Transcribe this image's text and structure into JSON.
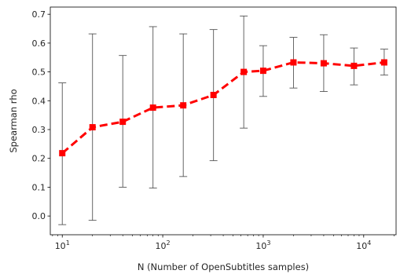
{
  "chart_data": {
    "type": "line",
    "title": "",
    "xlabel": "N (Number of OpenSubtitles samples)",
    "ylabel": "Spearman rho",
    "x_scale": "log",
    "xlim": [
      7.6,
      21000
    ],
    "ylim": [
      -0.065,
      0.725
    ],
    "x_ticks": [
      {
        "base": "10",
        "exp": "1",
        "value": 10
      },
      {
        "base": "10",
        "exp": "2",
        "value": 100
      },
      {
        "base": "10",
        "exp": "3",
        "value": 1000
      },
      {
        "base": "10",
        "exp": "4",
        "value": 10000
      }
    ],
    "y_ticks": [
      "0.0",
      "0.1",
      "0.2",
      "0.3",
      "0.4",
      "0.5",
      "0.6",
      "0.7"
    ],
    "grid": false,
    "legend": "none",
    "series": [
      {
        "style": "dashed line with square markers",
        "color": "#ff0000",
        "errorbar_color": "#555555",
        "points": [
          {
            "x": 10,
            "y": 0.218,
            "lower": -0.03,
            "upper": 0.462
          },
          {
            "x": 20,
            "y": 0.308,
            "lower": -0.015,
            "upper": 0.632
          },
          {
            "x": 40,
            "y": 0.327,
            "lower": 0.1,
            "upper": 0.557
          },
          {
            "x": 80,
            "y": 0.376,
            "lower": 0.097,
            "upper": 0.657
          },
          {
            "x": 160,
            "y": 0.384,
            "lower": 0.137,
            "upper": 0.632
          },
          {
            "x": 320,
            "y": 0.42,
            "lower": 0.192,
            "upper": 0.647
          },
          {
            "x": 640,
            "y": 0.5,
            "lower": 0.305,
            "upper": 0.694
          },
          {
            "x": 1000,
            "y": 0.504,
            "lower": 0.415,
            "upper": 0.591
          },
          {
            "x": 2000,
            "y": 0.533,
            "lower": 0.444,
            "upper": 0.62
          },
          {
            "x": 4000,
            "y": 0.53,
            "lower": 0.432,
            "upper": 0.629
          },
          {
            "x": 8000,
            "y": 0.521,
            "lower": 0.455,
            "upper": 0.583
          },
          {
            "x": 16000,
            "y": 0.533,
            "lower": 0.489,
            "upper": 0.579
          }
        ]
      }
    ]
  }
}
